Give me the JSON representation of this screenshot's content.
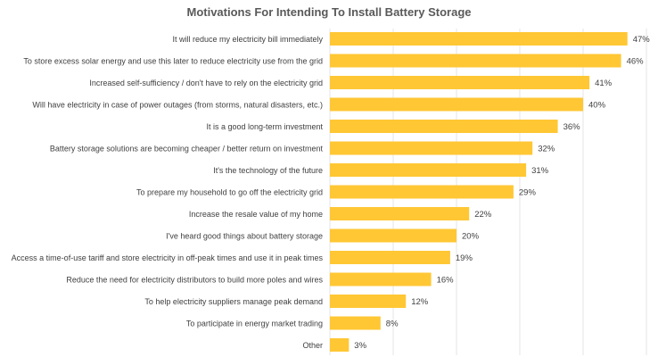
{
  "chart_data": {
    "type": "bar",
    "orientation": "horizontal",
    "title": "Motivations For Intending To Install Battery Storage",
    "categories": [
      "It will reduce my electricity bill immediately",
      "To store excess solar energy and use this later to reduce electricity use from the grid",
      "Increased self-sufficiency / don't have to rely on the electricity grid",
      "Will have electricity in case of power outages (from storms, natural disasters, etc.)",
      "It is a good long-term investment",
      "Battery storage solutions are becoming cheaper / better return on investment",
      "It's the technology of the future",
      "To prepare my household to go off the electricity grid",
      "Increase the resale value of my home",
      "I've heard good things about battery storage",
      "Access a time-of-use tariff and store electricity in off-peak times and use it in peak times",
      "Reduce the need for electricity distributors to build more poles and wires",
      "To help electricity suppliers manage peak demand",
      "To participate in energy market trading",
      "Other"
    ],
    "values": [
      47,
      46,
      41,
      40,
      36,
      32,
      31,
      29,
      22,
      20,
      19,
      16,
      12,
      8,
      3
    ],
    "value_labels": [
      "47%",
      "46%",
      "41%",
      "40%",
      "36%",
      "32%",
      "31%",
      "29%",
      "22%",
      "20%",
      "19%",
      "16%",
      "12%",
      "8%",
      "3%"
    ],
    "xlim": [
      0,
      50
    ],
    "grid": true,
    "legend": "none",
    "bar_color": "#FFC734",
    "grid_color": "#E6E6E6"
  }
}
